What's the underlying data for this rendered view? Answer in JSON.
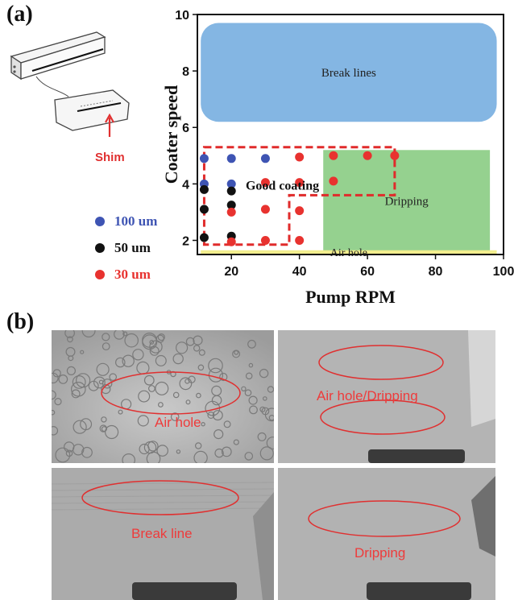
{
  "panel_a_label": "(a)",
  "panel_b_label": "(b)",
  "device": {
    "shim_label": "Shim",
    "shim_color": "#e03030"
  },
  "chart_data": {
    "type": "scatter",
    "title": "",
    "xlabel": "Pump RPM",
    "ylabel": "Coater speed",
    "xlim": [
      10,
      100
    ],
    "ylim": [
      1.5,
      10
    ],
    "xticks": [
      20,
      40,
      60,
      80,
      100
    ],
    "yticks": [
      2,
      4,
      6,
      8,
      10
    ],
    "grid": false,
    "regions": [
      {
        "label": "Break lines",
        "x": [
          11,
          98
        ],
        "y": [
          6.2,
          9.7
        ],
        "color": "#84b6e3",
        "shape": "rounded"
      },
      {
        "label": "Dripping",
        "x": [
          47,
          96
        ],
        "y": [
          1.6,
          5.2
        ],
        "color": "#95d18f",
        "shape": "rect"
      },
      {
        "label": "Air hole",
        "x": [
          11,
          98
        ],
        "y": [
          1.1,
          1.65
        ],
        "color": "#f2ee8e",
        "shape": "rect"
      }
    ],
    "good_coating": {
      "label": "Good coating",
      "color": "#e02b2b",
      "polygon": [
        [
          12,
          5.3
        ],
        [
          68,
          5.3
        ],
        [
          68,
          3.6
        ],
        [
          37,
          3.6
        ],
        [
          37,
          1.85
        ],
        [
          12,
          1.85
        ]
      ]
    },
    "series": [
      {
        "name": "100 um",
        "color": "#3e54b3",
        "points": [
          [
            12,
            4.9
          ],
          [
            20,
            4.9
          ],
          [
            30,
            4.9
          ],
          [
            12,
            4.0
          ],
          [
            20,
            4.0
          ]
        ]
      },
      {
        "name": "50 um",
        "color": "#111111",
        "points": [
          [
            12,
            3.8
          ],
          [
            20,
            3.75
          ],
          [
            12,
            3.1
          ],
          [
            20,
            3.25
          ],
          [
            12,
            2.1
          ],
          [
            20,
            2.15
          ]
        ]
      },
      {
        "name": "30 um",
        "color": "#e8322f",
        "points": [
          [
            30,
            4.05
          ],
          [
            40,
            4.05
          ],
          [
            50,
            4.1
          ],
          [
            40,
            4.95
          ],
          [
            50,
            5.0
          ],
          [
            60,
            5.0
          ],
          [
            68,
            5.0
          ],
          [
            30,
            3.1
          ],
          [
            40,
            3.05
          ],
          [
            20,
            3.0
          ],
          [
            30,
            2.0
          ],
          [
            40,
            2.0
          ],
          [
            20,
            1.95
          ]
        ]
      }
    ]
  },
  "photos": [
    {
      "caption": "Air hole"
    },
    {
      "caption": "Air hole/Dripping"
    },
    {
      "caption": "Break line"
    },
    {
      "caption": "Dripping"
    }
  ]
}
